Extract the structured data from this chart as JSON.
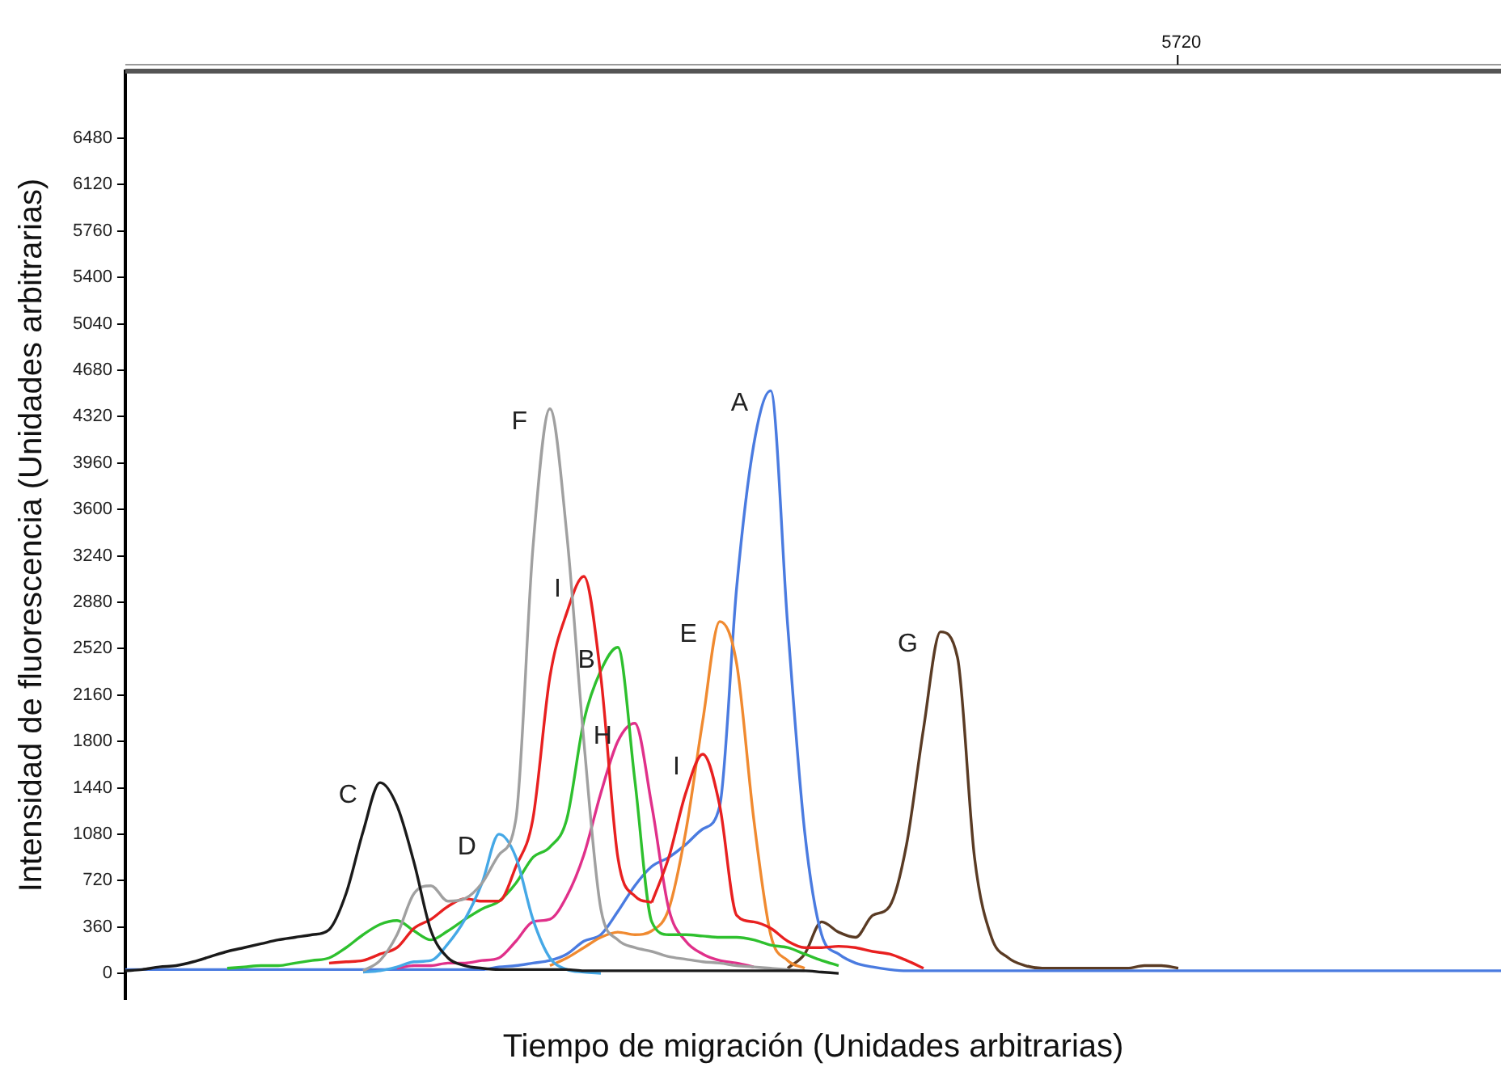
{
  "chart_data": {
    "type": "line",
    "xlabel": "Tiempo de migración (Unidades arbitrarias)",
    "ylabel": "Intensidad de fluorescencia (Unidades arbitrarias)",
    "categories": [
      null,
      null,
      null,
      null,
      null,
      null,
      null,
      null,
      null,
      null,
      null,
      null,
      null,
      null,
      null,
      null,
      null,
      null,
      null,
      null,
      null,
      null,
      null,
      null,
      null,
      null,
      null,
      null,
      null,
      null,
      null,
      null,
      null,
      null,
      null,
      null,
      null,
      null,
      null,
      null,
      null,
      null,
      null,
      null,
      null,
      null,
      null,
      null,
      null,
      null,
      null,
      null,
      null,
      null,
      null,
      null,
      null,
      null,
      null,
      null,
      null,
      null,
      null,
      null,
      null,
      null,
      null,
      null,
      null,
      null,
      null,
      null,
      null,
      null,
      null,
      null,
      null,
      null,
      null,
      null,
      null,
      null
    ],
    "series": [
      {
        "name": "C",
        "color": "#1a1a1a",
        "values": [
          20,
          30,
          50,
          60,
          90,
          130,
          170,
          200,
          230,
          260,
          280,
          300,
          340,
          620,
          1100,
          1480,
          1300,
          860,
          330,
          120,
          60,
          40,
          30,
          30,
          30,
          30,
          30,
          20,
          20,
          20,
          20,
          20,
          20,
          20,
          20,
          20,
          20,
          20,
          20,
          20,
          20,
          10,
          0,
          null,
          null,
          null,
          null,
          null,
          null,
          null,
          null,
          null,
          null,
          null,
          null,
          null,
          null,
          null,
          null,
          null,
          null,
          null,
          null,
          null,
          null,
          null,
          null,
          null,
          null,
          null,
          null,
          null,
          null,
          null,
          null,
          null,
          null,
          null,
          null,
          null,
          null,
          null
        ]
      },
      {
        "name": "F",
        "color": "#a0a0a0",
        "values": [
          null,
          null,
          null,
          null,
          null,
          null,
          null,
          null,
          null,
          null,
          null,
          null,
          null,
          null,
          20,
          100,
          300,
          620,
          680,
          560,
          580,
          700,
          920,
          1200,
          3300,
          4380,
          3400,
          1800,
          500,
          260,
          200,
          170,
          130,
          110,
          90,
          80,
          60,
          50,
          40,
          30,
          20,
          null,
          null,
          null,
          null,
          null,
          null,
          null,
          null,
          null,
          null,
          null,
          null,
          null,
          null,
          null,
          null,
          null,
          null,
          null,
          null,
          null,
          null,
          null,
          null,
          null,
          null,
          null,
          null,
          null,
          null,
          null,
          null,
          null,
          null,
          null,
          null,
          null,
          null,
          null,
          null,
          null
        ]
      },
      {
        "name": "D",
        "color": "#45a8e6",
        "values": [
          null,
          null,
          null,
          null,
          null,
          null,
          null,
          null,
          null,
          null,
          null,
          null,
          null,
          null,
          10,
          20,
          50,
          90,
          100,
          230,
          420,
          700,
          1080,
          900,
          420,
          120,
          30,
          10,
          0,
          null,
          null,
          null,
          null,
          null,
          null,
          null,
          null,
          null,
          null,
          null,
          null,
          null,
          null,
          null,
          null,
          null,
          null,
          null,
          null,
          null,
          null,
          null,
          null,
          null,
          null,
          null,
          null,
          null,
          null,
          null,
          null,
          null,
          null,
          null,
          null,
          null,
          null,
          null,
          null,
          null,
          null,
          null,
          null,
          null,
          null,
          null,
          null,
          null,
          null,
          null,
          null,
          null
        ]
      },
      {
        "name": "I",
        "color": "#e82020",
        "values": [
          null,
          null,
          null,
          null,
          null,
          null,
          null,
          null,
          null,
          null,
          null,
          null,
          80,
          90,
          100,
          150,
          200,
          350,
          420,
          520,
          580,
          560,
          560,
          830,
          1200,
          2300,
          2800,
          3080,
          2300,
          900,
          600,
          550,
          null,
          null,
          null,
          null,
          null,
          null,
          null,
          null,
          null,
          null,
          null,
          null,
          null,
          null,
          null,
          null,
          null,
          null,
          null,
          null,
          null,
          null,
          null,
          null,
          null,
          null,
          null,
          null,
          null,
          null,
          null,
          null,
          null,
          null,
          null,
          null,
          null,
          null,
          null,
          null,
          null,
          null,
          null,
          null,
          null,
          null,
          null,
          null,
          null,
          null
        ]
      },
      {
        "name": "I",
        "color": "#e82020",
        "values": [
          null,
          null,
          null,
          null,
          null,
          null,
          null,
          null,
          null,
          null,
          null,
          null,
          null,
          null,
          null,
          null,
          null,
          null,
          null,
          null,
          null,
          null,
          null,
          null,
          null,
          null,
          null,
          null,
          null,
          null,
          null,
          550,
          900,
          1400,
          1700,
          1300,
          450,
          400,
          350,
          250,
          200,
          200,
          210,
          200,
          170,
          150,
          100,
          40,
          null,
          null,
          null,
          null,
          null,
          null,
          null,
          null,
          null,
          null,
          null,
          null,
          null,
          null,
          null,
          null,
          null,
          null,
          null,
          null,
          null,
          null,
          null,
          null,
          null,
          null,
          null,
          null,
          null,
          null,
          null,
          null,
          null,
          null
        ]
      },
      {
        "name": "B",
        "color": "#2ec02e",
        "values": [
          null,
          null,
          null,
          null,
          null,
          null,
          40,
          50,
          60,
          60,
          80,
          100,
          120,
          200,
          300,
          380,
          410,
          330,
          260,
          330,
          420,
          500,
          560,
          700,
          900,
          980,
          1200,
          1960,
          2350,
          2530,
          1500,
          400,
          300,
          300,
          290,
          280,
          280,
          260,
          220,
          200,
          150,
          100,
          60,
          null,
          null,
          null,
          null,
          null,
          null,
          null,
          null,
          null,
          null,
          null,
          null,
          null,
          null,
          null,
          null,
          null,
          null,
          null,
          null,
          null,
          null,
          null,
          null,
          null,
          null,
          null,
          null,
          null,
          null,
          null,
          null,
          null,
          null,
          null,
          null,
          null,
          null,
          null
        ]
      },
      {
        "name": "H",
        "color": "#e0308a",
        "values": [
          null,
          null,
          null,
          null,
          null,
          null,
          null,
          null,
          null,
          null,
          null,
          null,
          null,
          null,
          null,
          null,
          40,
          60,
          60,
          80,
          80,
          100,
          120,
          250,
          400,
          420,
          600,
          920,
          1400,
          1800,
          1940,
          1300,
          500,
          250,
          150,
          100,
          80,
          50,
          null,
          null,
          null,
          null,
          null,
          null,
          null,
          null,
          null,
          null,
          null,
          null,
          null,
          null,
          null,
          null,
          null,
          null,
          null,
          null,
          null,
          null,
          null,
          null,
          null,
          null,
          null,
          null,
          null,
          null,
          null,
          null,
          null,
          null,
          null,
          null,
          null,
          null,
          null,
          null,
          null,
          null,
          null,
          null
        ]
      },
      {
        "name": "E",
        "color": "#f08a30",
        "values": [
          null,
          null,
          null,
          null,
          null,
          null,
          null,
          null,
          null,
          null,
          null,
          null,
          null,
          null,
          null,
          null,
          null,
          null,
          null,
          null,
          null,
          null,
          null,
          null,
          null,
          60,
          120,
          200,
          280,
          320,
          300,
          330,
          500,
          1100,
          1960,
          2730,
          2400,
          1200,
          300,
          100,
          40,
          null,
          null,
          null,
          null,
          null,
          null,
          null,
          null,
          null,
          null,
          null,
          null,
          null,
          null,
          null,
          null,
          null,
          null,
          null,
          null,
          null,
          null,
          null,
          null,
          null,
          null,
          null,
          null,
          null,
          null,
          null,
          null,
          null,
          null,
          null,
          null,
          null,
          null,
          null,
          null,
          null
        ]
      },
      {
        "name": "A",
        "color": "#4a7be0",
        "values": [
          30,
          30,
          30,
          30,
          30,
          30,
          30,
          30,
          30,
          30,
          30,
          30,
          30,
          30,
          30,
          30,
          30,
          30,
          30,
          30,
          30,
          30,
          50,
          60,
          80,
          100,
          150,
          250,
          300,
          480,
          680,
          830,
          900,
          1000,
          1120,
          1300,
          3000,
          4100,
          4520,
          2700,
          1100,
          300,
          150,
          80,
          50,
          30,
          20,
          20,
          20,
          20,
          20,
          20,
          20,
          20,
          20,
          20,
          20,
          20,
          20,
          20,
          20,
          20,
          20,
          20,
          20,
          20,
          20,
          20,
          20,
          20,
          20,
          20,
          20,
          20,
          20,
          20,
          20,
          20,
          20,
          20,
          20,
          20
        ]
      },
      {
        "name": "G",
        "color": "#5a3b24",
        "values": [
          null,
          null,
          null,
          null,
          null,
          null,
          null,
          null,
          null,
          null,
          null,
          null,
          null,
          null,
          null,
          null,
          null,
          null,
          null,
          null,
          null,
          null,
          null,
          null,
          null,
          null,
          null,
          null,
          null,
          null,
          null,
          null,
          null,
          null,
          null,
          null,
          null,
          null,
          null,
          40,
          150,
          400,
          320,
          280,
          450,
          520,
          1000,
          1900,
          2650,
          2450,
          900,
          280,
          120,
          60,
          40,
          40,
          40,
          40,
          40,
          40,
          60,
          60,
          40,
          null,
          null,
          null,
          null,
          null,
          null,
          null,
          null,
          null,
          null,
          null,
          null,
          null,
          null,
          null,
          null,
          null,
          null,
          null
        ]
      }
    ],
    "ylim": [
      -200,
      7000
    ],
    "yticks": [
      0,
      360,
      720,
      1080,
      1440,
      1800,
      2160,
      2520,
      2880,
      3240,
      3600,
      3960,
      4320,
      4680,
      5040,
      5400,
      5760,
      6120,
      6480
    ],
    "tick_labels": "y",
    "marker": "none",
    "annotations": [
      "5720"
    ]
  }
}
